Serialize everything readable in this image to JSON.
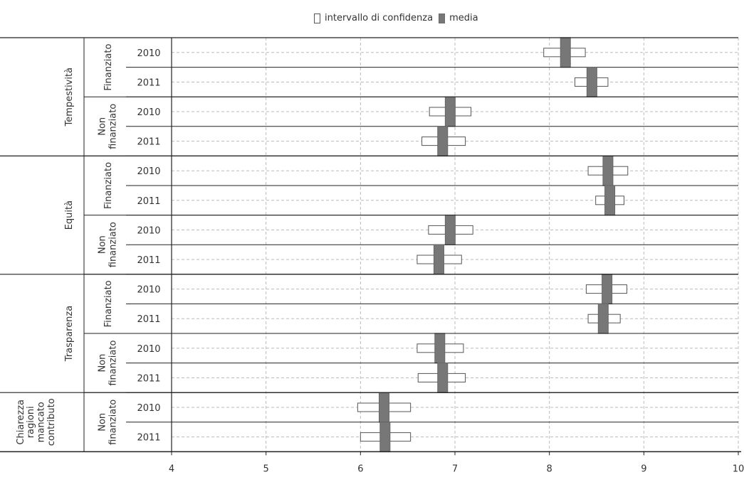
{
  "legend": {
    "ci_label": "intervallo di confidenza",
    "mean_label": "media"
  },
  "colors": {
    "ci_fill": "#ffffff",
    "ci_stroke": "#555555",
    "mean_fill": "#777777",
    "grid": "#bbbbbb",
    "axis": "#222222"
  },
  "chart_data": {
    "type": "interval",
    "xlim": [
      4,
      10
    ],
    "x_ticks": [
      4,
      5,
      6,
      7,
      8,
      9,
      10
    ],
    "grid": true,
    "legend_position": "top-center",
    "groups": [
      {
        "name": "Tempestività",
        "subgroups": [
          {
            "name": "Finanziato",
            "rows": [
              {
                "year": "2010",
                "mean": 8.17,
                "ci_low": 7.94,
                "ci_high": 8.38
              },
              {
                "year": "2011",
                "mean": 8.45,
                "ci_low": 8.27,
                "ci_high": 8.62
              }
            ]
          },
          {
            "name": "Non finanziato",
            "rows": [
              {
                "year": "2010",
                "mean": 6.95,
                "ci_low": 6.73,
                "ci_high": 7.17
              },
              {
                "year": "2011",
                "mean": 6.87,
                "ci_low": 6.65,
                "ci_high": 7.11
              }
            ]
          }
        ]
      },
      {
        "name": "Equità",
        "subgroups": [
          {
            "name": "Finanziato",
            "rows": [
              {
                "year": "2010",
                "mean": 8.62,
                "ci_low": 8.41,
                "ci_high": 8.83
              },
              {
                "year": "2011",
                "mean": 8.64,
                "ci_low": 8.49,
                "ci_high": 8.79
              }
            ]
          },
          {
            "name": "Non finanziato",
            "rows": [
              {
                "year": "2010",
                "mean": 6.95,
                "ci_low": 6.72,
                "ci_high": 7.19
              },
              {
                "year": "2011",
                "mean": 6.83,
                "ci_low": 6.6,
                "ci_high": 7.07
              }
            ]
          }
        ]
      },
      {
        "name": "Trasparenza",
        "subgroups": [
          {
            "name": "Finanziato",
            "rows": [
              {
                "year": "2010",
                "mean": 8.61,
                "ci_low": 8.39,
                "ci_high": 8.82
              },
              {
                "year": "2011",
                "mean": 8.57,
                "ci_low": 8.41,
                "ci_high": 8.75
              }
            ]
          },
          {
            "name": "Non finanziato",
            "rows": [
              {
                "year": "2010",
                "mean": 6.84,
                "ci_low": 6.6,
                "ci_high": 7.09
              },
              {
                "year": "2011",
                "mean": 6.87,
                "ci_low": 6.61,
                "ci_high": 7.11
              }
            ]
          }
        ]
      },
      {
        "name": "Chiarezza ragioni mancato contributo",
        "subgroups": [
          {
            "name": "Non finanziato",
            "rows": [
              {
                "year": "2010",
                "mean": 6.25,
                "ci_low": 5.97,
                "ci_high": 6.53
              },
              {
                "year": "2011",
                "mean": 6.26,
                "ci_low": 6.0,
                "ci_high": 6.53
              }
            ]
          }
        ]
      }
    ]
  }
}
